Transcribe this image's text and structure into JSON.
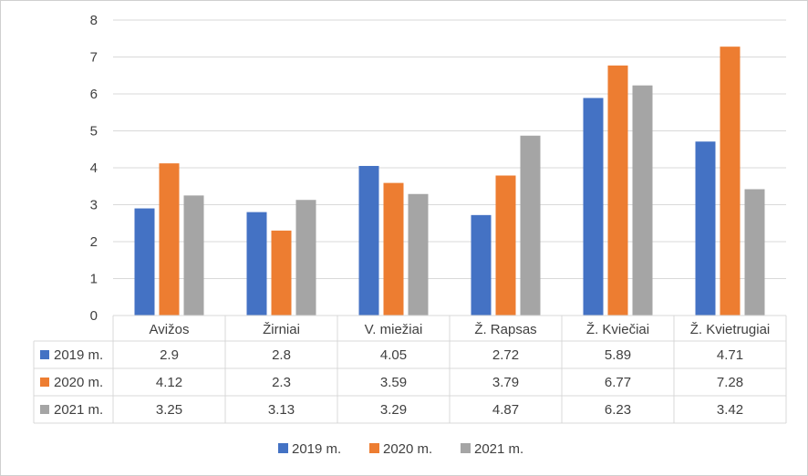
{
  "chart_data": {
    "type": "bar",
    "categories": [
      "Avižos",
      "Žirniai",
      "V. miežiai",
      "Ž. Rapsas",
      "Ž. Kviečiai",
      "Ž. Kvietrugiai"
    ],
    "series": [
      {
        "name": "2019 m.",
        "values": [
          2.9,
          2.8,
          4.05,
          2.72,
          5.89,
          4.71
        ],
        "labels": [
          "2.9",
          "2.8",
          "4.05",
          "2.72",
          "5.89",
          "4.71"
        ],
        "color": "#4472C4"
      },
      {
        "name": "2020 m.",
        "values": [
          4.12,
          2.3,
          3.59,
          3.79,
          6.77,
          7.28
        ],
        "labels": [
          "4.12",
          "2.3",
          "3.59",
          "3.79",
          "6.77",
          "7.28"
        ],
        "color": "#ED7D31"
      },
      {
        "name": "2021 m.",
        "values": [
          3.25,
          3.13,
          3.29,
          4.87,
          6.23,
          3.42
        ],
        "labels": [
          "3.25",
          "3.13",
          "3.29",
          "4.87",
          "6.23",
          "3.42"
        ],
        "color": "#A5A5A5"
      }
    ],
    "yticks": [
      "0",
      "1",
      "2",
      "3",
      "4",
      "5",
      "6",
      "7",
      "8"
    ],
    "ylim": [
      0,
      8
    ],
    "grid": true,
    "data_table": true,
    "legend_position": "bottom",
    "title": "",
    "xlabel": "",
    "ylabel": ""
  }
}
